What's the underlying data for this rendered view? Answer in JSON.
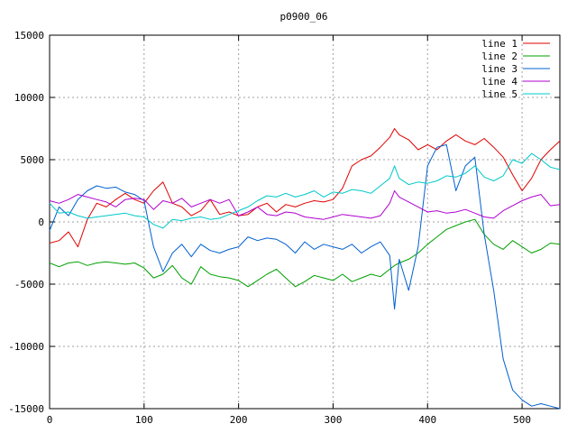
{
  "chart_data": {
    "type": "line",
    "title": "p0900_06",
    "xlabel": "",
    "ylabel": "",
    "xlim": [
      0,
      540
    ],
    "ylim": [
      -15000,
      15000
    ],
    "xticks": [
      0,
      100,
      200,
      300,
      400,
      500
    ],
    "yticks": [
      -15000,
      -10000,
      -5000,
      0,
      5000,
      10000,
      15000
    ],
    "grid": true,
    "legend_position": "top-right",
    "x": [
      0,
      10,
      20,
      30,
      40,
      50,
      60,
      70,
      80,
      90,
      100,
      110,
      120,
      130,
      140,
      150,
      160,
      170,
      180,
      190,
      200,
      210,
      220,
      230,
      240,
      250,
      260,
      270,
      280,
      290,
      300,
      310,
      320,
      330,
      340,
      350,
      360,
      365,
      370,
      380,
      390,
      400,
      410,
      420,
      430,
      440,
      450,
      460,
      470,
      480,
      490,
      500,
      510,
      520,
      530,
      540
    ],
    "series": [
      {
        "name": "line 1",
        "color": "#e00000",
        "values": [
          -1700,
          -1500,
          -800,
          -2000,
          200,
          1500,
          1200,
          1800,
          2300,
          1800,
          1500,
          2500,
          3200,
          1500,
          1200,
          500,
          900,
          1800,
          600,
          800,
          500,
          600,
          1200,
          1500,
          800,
          1400,
          1200,
          1500,
          1700,
          1600,
          1800,
          2700,
          4500,
          5000,
          5300,
          6000,
          6800,
          7500,
          7000,
          6600,
          5800,
          6200,
          5800,
          6500,
          7000,
          6500,
          6200,
          6700,
          6000,
          5200,
          3800,
          2500,
          3500,
          5000,
          5800,
          6500
        ]
      },
      {
        "name": "line 2",
        "color": "#00a000",
        "values": [
          -3300,
          -3600,
          -3300,
          -3200,
          -3500,
          -3300,
          -3200,
          -3300,
          -3400,
          -3300,
          -3700,
          -4500,
          -4200,
          -3500,
          -4500,
          -5000,
          -3600,
          -4200,
          -4400,
          -4500,
          -4700,
          -5200,
          -4700,
          -4200,
          -3800,
          -4500,
          -5200,
          -4800,
          -4300,
          -4500,
          -4700,
          -4200,
          -4800,
          -4500,
          -4200,
          -4400,
          -3800,
          -3500,
          -3300,
          -3000,
          -2500,
          -1800,
          -1200,
          -600,
          -300,
          0,
          200,
          -1000,
          -1800,
          -2200,
          -1500,
          -2000,
          -2500,
          -2200,
          -1700,
          -1800
        ]
      },
      {
        "name": "line 3",
        "color": "#0060d0",
        "values": [
          -700,
          1200,
          500,
          1800,
          2500,
          2900,
          2700,
          2800,
          2400,
          2200,
          1700,
          -2000,
          -4000,
          -2500,
          -1800,
          -2800,
          -1800,
          -2300,
          -2500,
          -2200,
          -2000,
          -1200,
          -1500,
          -1300,
          -1400,
          -1800,
          -2500,
          -1600,
          -2200,
          -1800,
          -2000,
          -2200,
          -1800,
          -2500,
          -2000,
          -1600,
          -2700,
          -7000,
          -3000,
          -5500,
          -2000,
          4500,
          6000,
          6200,
          2500,
          4500,
          5200,
          -1000,
          -5500,
          -11000,
          -13500,
          -14300,
          -14800,
          -14600,
          -14800,
          -15000
        ]
      },
      {
        "name": "line 4",
        "color": "#b000d0",
        "values": [
          1700,
          1500,
          1800,
          2200,
          2000,
          1800,
          1600,
          1200,
          1800,
          1900,
          1800,
          1000,
          1700,
          1500,
          1900,
          1200,
          1500,
          1800,
          1500,
          1800,
          500,
          800,
          1200,
          600,
          500,
          800,
          700,
          400,
          300,
          200,
          400,
          600,
          500,
          400,
          300,
          500,
          1500,
          2500,
          2000,
          1600,
          1200,
          800,
          900,
          700,
          800,
          1000,
          700,
          400,
          300,
          900,
          1300,
          1700,
          2000,
          2200,
          1300,
          1400
        ]
      },
      {
        "name": "line 5",
        "color": "#00c8c8",
        "values": [
          1500,
          700,
          800,
          500,
          300,
          400,
          500,
          600,
          700,
          500,
          400,
          -200,
          -500,
          200,
          100,
          300,
          400,
          200,
          300,
          600,
          900,
          1200,
          1700,
          2100,
          2000,
          2300,
          2000,
          2200,
          2500,
          2000,
          2400,
          2300,
          2600,
          2500,
          2300,
          2900,
          3500,
          4500,
          3500,
          3000,
          3200,
          3100,
          3300,
          3700,
          3600,
          3900,
          4500,
          3600,
          3300,
          3700,
          5000,
          4700,
          5500,
          5000,
          4400,
          4200
        ]
      }
    ]
  }
}
